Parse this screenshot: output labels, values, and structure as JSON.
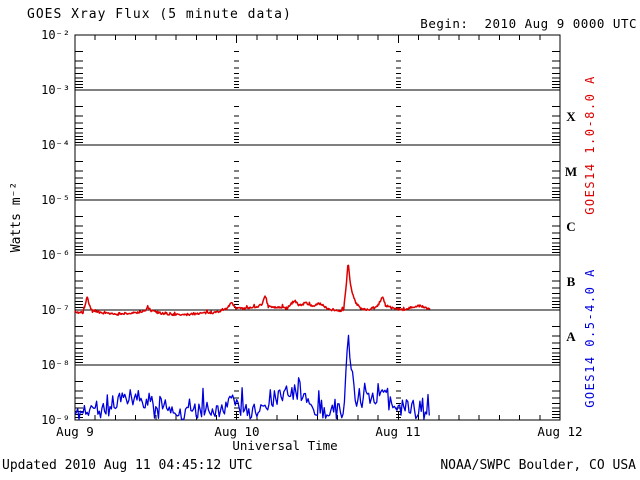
{
  "header": {
    "title": "GOES Xray Flux (5 minute data)",
    "begin_label": "Begin:  2010 Aug 9 0000 UTC"
  },
  "footer": {
    "updated": "Updated 2010 Aug 11 04:45:12 UTC",
    "source": "NOAA/SWPC Boulder, CO USA"
  },
  "colors": {
    "background": "#ffffff",
    "axis": "#000000",
    "long_channel": "#dd0000",
    "short_channel": "#0000dd"
  },
  "chart_data": {
    "type": "line",
    "title": "GOES Xray Flux (5 minute data)",
    "xlabel": "Universal Time",
    "ylabel": "Watts m⁻²",
    "y_tick_labels": [
      "10⁻²",
      "10⁻³",
      "10⁻⁴",
      "10⁻⁵",
      "10⁻⁶",
      "10⁻⁷",
      "10⁻⁸",
      "10⁻⁹"
    ],
    "x_tick_labels": [
      "Aug 9",
      "Aug 10",
      "Aug 11",
      "Aug 12"
    ],
    "flare_class_labels": [
      "X",
      "M",
      "C",
      "B",
      "A"
    ],
    "y_axis": {
      "scale": "log",
      "top_exp": -2,
      "bottom_exp": -9,
      "decades": 7,
      "unit": "Watts m⁻²"
    },
    "x_axis": {
      "begin": "2010 Aug 9 0000 UTC",
      "range_days": 3,
      "minor_tick_hours": 3,
      "day_dash_columns": [
        1,
        2
      ]
    },
    "grid": {
      "horizontal_lines_at_decades": true,
      "vertical_dash_columns_at_days": true
    },
    "legend_note": "Flare peaks near 2010 Aug 10 ~16:30 UTC: long channel ~7.5e-7 W/m2 (B7), short channel ~4.4e-8 W/m2; data end 2010 Aug 11 ~04:45 UTC",
    "series": [
      {
        "name": "GOES14 1.0-8.0 A",
        "band": "long",
        "color": "#dd0000",
        "stroke_width": 1.5,
        "end_hour": 52.75,
        "step_hours": 0.1,
        "noise_amp_log": 0.02,
        "spike_prob": 0.12,
        "spike_amp_log": 0.05,
        "noise_damp_above_log": -6.6,
        "clamp_min_log": -7.12,
        "seed": 7,
        "breakpoints": [
          [
            0,
            -7.04
          ],
          [
            1.2,
            -7.05
          ],
          [
            1.55,
            -6.9
          ],
          [
            1.8,
            -6.76
          ],
          [
            2.1,
            -6.9
          ],
          [
            2.6,
            -7.03
          ],
          [
            4,
            -7.06
          ],
          [
            6,
            -7.08
          ],
          [
            8.5,
            -7.06
          ],
          [
            10.4,
            -7.02
          ],
          [
            10.8,
            -6.94
          ],
          [
            11.3,
            -7.02
          ],
          [
            13,
            -7.07
          ],
          [
            16,
            -7.09
          ],
          [
            18.5,
            -7.06
          ],
          [
            21,
            -7.04
          ],
          [
            22.6,
            -6.97
          ],
          [
            23.3,
            -6.86
          ],
          [
            23.8,
            -6.96
          ],
          [
            25,
            -6.98
          ],
          [
            26.5,
            -6.96
          ],
          [
            27.8,
            -6.9
          ],
          [
            28.2,
            -6.73
          ],
          [
            28.7,
            -6.94
          ],
          [
            30,
            -6.96
          ],
          [
            31.5,
            -6.97
          ],
          [
            32.6,
            -6.82
          ],
          [
            33.2,
            -6.92
          ],
          [
            34.3,
            -6.87
          ],
          [
            35.3,
            -6.93
          ],
          [
            36.3,
            -6.88
          ],
          [
            37.5,
            -6.97
          ],
          [
            38.6,
            -7.02
          ],
          [
            39.9,
            -7.0
          ],
          [
            40.3,
            -6.5
          ],
          [
            40.55,
            -6.13
          ],
          [
            40.85,
            -6.5
          ],
          [
            41.2,
            -6.72
          ],
          [
            41.7,
            -6.88
          ],
          [
            42.5,
            -6.97
          ],
          [
            43.6,
            -7.0
          ],
          [
            44.6,
            -6.96
          ],
          [
            45.3,
            -6.87
          ],
          [
            45.65,
            -6.74
          ],
          [
            46.1,
            -6.92
          ],
          [
            47.2,
            -6.97
          ],
          [
            48.5,
            -7.0
          ],
          [
            50,
            -6.95
          ],
          [
            51.2,
            -6.92
          ],
          [
            52.2,
            -6.97
          ],
          [
            52.75,
            -6.99
          ]
        ]
      },
      {
        "name": "GOES14 0.5-4.0 A",
        "band": "short",
        "color": "#0000dd",
        "stroke_width": 1.3,
        "end_hour": 52.75,
        "step_hours": 0.2,
        "noise_amp_log": 0.13,
        "spike_prob": 0.3,
        "spike_amp_log": 0.33,
        "noise_damp_above_log": -8.2,
        "clamp_min_log": -9.0,
        "seed": 11,
        "breakpoints": [
          [
            0,
            -8.9
          ],
          [
            2,
            -8.82
          ],
          [
            4,
            -8.87
          ],
          [
            6.3,
            -8.72
          ],
          [
            7.3,
            -8.55
          ],
          [
            8.6,
            -8.62
          ],
          [
            10,
            -8.72
          ],
          [
            12,
            -8.85
          ],
          [
            14,
            -8.8
          ],
          [
            16,
            -8.9
          ],
          [
            18,
            -8.84
          ],
          [
            20,
            -8.8
          ],
          [
            22,
            -8.86
          ],
          [
            23.4,
            -8.62
          ],
          [
            24.3,
            -8.8
          ],
          [
            26,
            -8.86
          ],
          [
            28,
            -8.76
          ],
          [
            30,
            -8.6
          ],
          [
            31,
            -8.5
          ],
          [
            33,
            -8.5
          ],
          [
            34.5,
            -8.64
          ],
          [
            36,
            -8.84
          ],
          [
            38,
            -8.9
          ],
          [
            39.9,
            -8.84
          ],
          [
            40.25,
            -8.1
          ],
          [
            40.55,
            -7.36
          ],
          [
            40.85,
            -7.95
          ],
          [
            41.2,
            -8.35
          ],
          [
            41.7,
            -8.6
          ],
          [
            42.4,
            -8.8
          ],
          [
            43.05,
            -8.38
          ],
          [
            43.5,
            -8.72
          ],
          [
            44.5,
            -8.7
          ],
          [
            45.3,
            -8.52
          ],
          [
            45.65,
            -8.32
          ],
          [
            46.2,
            -8.7
          ],
          [
            47.5,
            -8.85
          ],
          [
            49,
            -8.8
          ],
          [
            51,
            -8.86
          ],
          [
            52.75,
            -8.9
          ]
        ]
      }
    ]
  }
}
